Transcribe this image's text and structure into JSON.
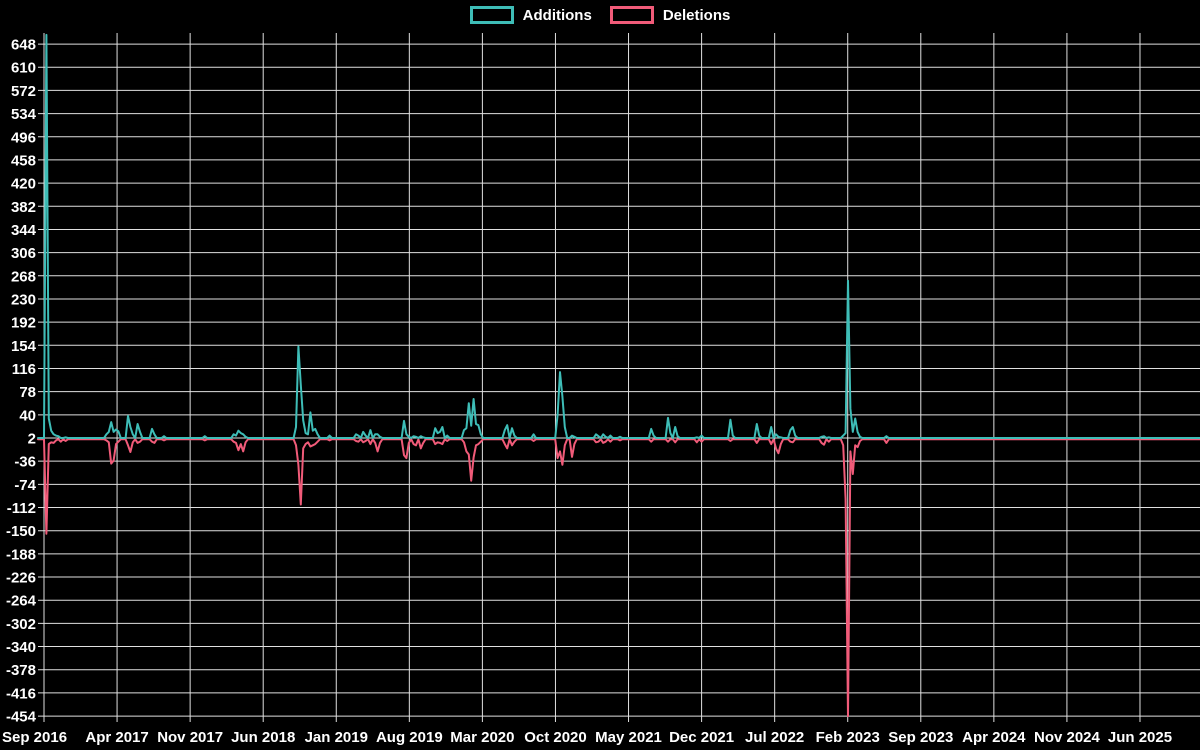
{
  "legend": {
    "items": [
      {
        "label": "Additions",
        "color": "#3ebdb7"
      },
      {
        "label": "Deletions",
        "color": "#f15b79"
      }
    ]
  },
  "colors": {
    "background": "#000000",
    "grid": "#e0e0e0",
    "text": "#ffffff",
    "additions": "#3ebdb7",
    "deletions": "#f15b79"
  },
  "chart_data": {
    "type": "line",
    "title": "",
    "legend_position": "top-center",
    "grid": true,
    "x_axis": {
      "labels": [
        "Sep 2016",
        "Apr 2017",
        "Nov 2017",
        "Jun 2018",
        "Jan 2019",
        "Aug 2019",
        "Mar 2020",
        "Oct 2020",
        "May 2021",
        "Dec 2021",
        "Jul 2022",
        "Feb 2023",
        "Sep 2023",
        "Apr 2024",
        "Nov 2024",
        "Jun 2025"
      ],
      "unit": "week",
      "weeks_total": 482,
      "note": "weekly samples; one label/gridline every 7 months"
    },
    "y_axis": {
      "min": -454,
      "max": 648,
      "tick_step": 38,
      "tick_labels": [
        648,
        610,
        572,
        534,
        496,
        458,
        420,
        382,
        344,
        306,
        268,
        230,
        192,
        154,
        116,
        78,
        40,
        2,
        -36,
        -74,
        -112,
        -150,
        -188,
        -226,
        -264,
        -302,
        -340,
        -378,
        -416,
        -454
      ]
    },
    "series": [
      {
        "name": "Additions",
        "color": "#3ebdb7",
        "baseline": 2,
        "points": [
          [
            1,
            663
          ],
          [
            2,
            34
          ],
          [
            3,
            14
          ],
          [
            4,
            8
          ],
          [
            5,
            6
          ],
          [
            6,
            5
          ],
          [
            9,
            3
          ],
          [
            26,
            8
          ],
          [
            27,
            12
          ],
          [
            28,
            28
          ],
          [
            29,
            12
          ],
          [
            30,
            16
          ],
          [
            31,
            13
          ],
          [
            35,
            38
          ],
          [
            36,
            20
          ],
          [
            37,
            8
          ],
          [
            39,
            25
          ],
          [
            40,
            12
          ],
          [
            45,
            17
          ],
          [
            46,
            8
          ],
          [
            50,
            5
          ],
          [
            67,
            5
          ],
          [
            79,
            8
          ],
          [
            80,
            6
          ],
          [
            81,
            14
          ],
          [
            82,
            10
          ],
          [
            83,
            8
          ],
          [
            84,
            4
          ],
          [
            105,
            20
          ],
          [
            106,
            152
          ],
          [
            107,
            89
          ],
          [
            108,
            31
          ],
          [
            109,
            10
          ],
          [
            110,
            8
          ],
          [
            111,
            44
          ],
          [
            112,
            14
          ],
          [
            113,
            17
          ],
          [
            114,
            8
          ],
          [
            119,
            6
          ],
          [
            130,
            8
          ],
          [
            131,
            6
          ],
          [
            133,
            12
          ],
          [
            134,
            6
          ],
          [
            136,
            15
          ],
          [
            138,
            8
          ],
          [
            139,
            8
          ],
          [
            140,
            4
          ],
          [
            150,
            30
          ],
          [
            151,
            8
          ],
          [
            152,
            4
          ],
          [
            154,
            5
          ],
          [
            155,
            4
          ],
          [
            157,
            5
          ],
          [
            158,
            3
          ],
          [
            163,
            18
          ],
          [
            164,
            10
          ],
          [
            165,
            12
          ],
          [
            166,
            20
          ],
          [
            168,
            6
          ],
          [
            175,
            15
          ],
          [
            176,
            18
          ],
          [
            177,
            59
          ],
          [
            178,
            22
          ],
          [
            179,
            66
          ],
          [
            180,
            25
          ],
          [
            181,
            23
          ],
          [
            182,
            8
          ],
          [
            192,
            15
          ],
          [
            193,
            23
          ],
          [
            195,
            18
          ],
          [
            196,
            6
          ],
          [
            204,
            8
          ],
          [
            214,
            40
          ],
          [
            215,
            110
          ],
          [
            216,
            70
          ],
          [
            217,
            20
          ],
          [
            220,
            6
          ],
          [
            221,
            4
          ],
          [
            230,
            8
          ],
          [
            231,
            5
          ],
          [
            233,
            8
          ],
          [
            234,
            4
          ],
          [
            236,
            6
          ],
          [
            240,
            4
          ],
          [
            253,
            17
          ],
          [
            254,
            6
          ],
          [
            260,
            35
          ],
          [
            261,
            10
          ],
          [
            263,
            20
          ],
          [
            264,
            5
          ],
          [
            272,
            3
          ],
          [
            274,
            6
          ],
          [
            286,
            32
          ],
          [
            287,
            6
          ],
          [
            297,
            25
          ],
          [
            298,
            6
          ],
          [
            303,
            20
          ],
          [
            305,
            8
          ],
          [
            306,
            4
          ],
          [
            307,
            3
          ],
          [
            311,
            15
          ],
          [
            312,
            20
          ],
          [
            313,
            6
          ],
          [
            324,
            4
          ],
          [
            325,
            5
          ],
          [
            327,
            3
          ],
          [
            333,
            6
          ],
          [
            334,
            10
          ],
          [
            335,
            260
          ],
          [
            336,
            50
          ],
          [
            337,
            12
          ],
          [
            338,
            34
          ],
          [
            339,
            12
          ],
          [
            340,
            4
          ],
          [
            351,
            5
          ]
        ]
      },
      {
        "name": "Deletions",
        "color": "#f15b79",
        "baseline": 0,
        "points": [
          [
            1,
            -155
          ],
          [
            2,
            -8
          ],
          [
            3,
            -5
          ],
          [
            4,
            -6
          ],
          [
            5,
            -2
          ],
          [
            7,
            -4
          ],
          [
            9,
            -3
          ],
          [
            26,
            -2
          ],
          [
            27,
            -5
          ],
          [
            28,
            -40
          ],
          [
            29,
            -35
          ],
          [
            30,
            -8
          ],
          [
            31,
            -4
          ],
          [
            35,
            -10
          ],
          [
            36,
            -21
          ],
          [
            37,
            -5
          ],
          [
            39,
            -6
          ],
          [
            40,
            -4
          ],
          [
            45,
            -4
          ],
          [
            46,
            -6
          ],
          [
            50,
            -2
          ],
          [
            67,
            -2
          ],
          [
            79,
            -4
          ],
          [
            80,
            -6
          ],
          [
            81,
            -18
          ],
          [
            82,
            -8
          ],
          [
            83,
            -20
          ],
          [
            84,
            -5
          ],
          [
            105,
            -10
          ],
          [
            106,
            -42
          ],
          [
            107,
            -107
          ],
          [
            108,
            -15
          ],
          [
            109,
            -8
          ],
          [
            110,
            -5
          ],
          [
            111,
            -12
          ],
          [
            112,
            -10
          ],
          [
            113,
            -8
          ],
          [
            114,
            -4
          ],
          [
            119,
            -2
          ],
          [
            130,
            -3
          ],
          [
            131,
            -4
          ],
          [
            133,
            -5
          ],
          [
            134,
            -3
          ],
          [
            136,
            -8
          ],
          [
            138,
            -6
          ],
          [
            139,
            -20
          ],
          [
            140,
            -6
          ],
          [
            150,
            -26
          ],
          [
            151,
            -31
          ],
          [
            152,
            -6
          ],
          [
            154,
            -8
          ],
          [
            155,
            -10
          ],
          [
            157,
            -15
          ],
          [
            158,
            -6
          ],
          [
            163,
            -8
          ],
          [
            164,
            -5
          ],
          [
            165,
            -6
          ],
          [
            166,
            -8
          ],
          [
            168,
            -3
          ],
          [
            175,
            -5
          ],
          [
            176,
            -20
          ],
          [
            177,
            -25
          ],
          [
            178,
            -68
          ],
          [
            179,
            -30
          ],
          [
            180,
            -10
          ],
          [
            181,
            -8
          ],
          [
            182,
            -4
          ],
          [
            192,
            -8
          ],
          [
            193,
            -15
          ],
          [
            195,
            -10
          ],
          [
            196,
            -4
          ],
          [
            204,
            -3
          ],
          [
            214,
            -31
          ],
          [
            215,
            -20
          ],
          [
            216,
            -42
          ],
          [
            217,
            -10
          ],
          [
            220,
            -29
          ],
          [
            221,
            -8
          ],
          [
            230,
            -5
          ],
          [
            231,
            -4
          ],
          [
            233,
            -6
          ],
          [
            234,
            -4
          ],
          [
            236,
            -4
          ],
          [
            240,
            -2
          ],
          [
            253,
            -4
          ],
          [
            260,
            -4
          ],
          [
            263,
            -5
          ],
          [
            272,
            -5
          ],
          [
            274,
            -4
          ],
          [
            286,
            -3
          ],
          [
            297,
            -6
          ],
          [
            303,
            -8
          ],
          [
            305,
            -15
          ],
          [
            306,
            -23
          ],
          [
            307,
            -8
          ],
          [
            311,
            -4
          ],
          [
            312,
            -5
          ],
          [
            324,
            -6
          ],
          [
            325,
            -9
          ],
          [
            327,
            -4
          ],
          [
            333,
            -10
          ],
          [
            334,
            -98
          ],
          [
            335,
            -454
          ],
          [
            336,
            -20
          ],
          [
            337,
            -57
          ],
          [
            338,
            -10
          ],
          [
            339,
            -13
          ],
          [
            340,
            -3
          ],
          [
            351,
            -6
          ]
        ]
      }
    ],
    "note": "Weeks not listed sit at the series baseline (flat line near value 2). First additions spike is clipped by chart top (~663). Deepest deletions spike reaches -454 at Feb 2023."
  }
}
